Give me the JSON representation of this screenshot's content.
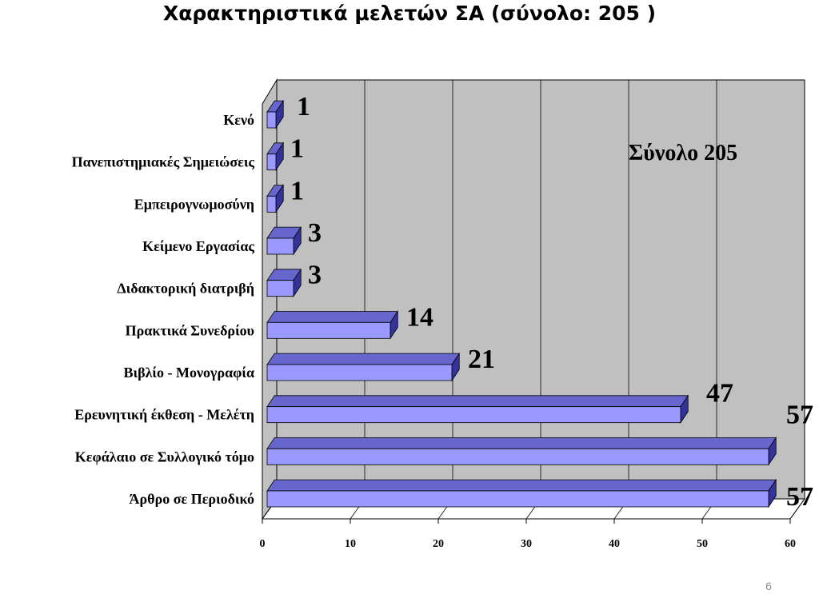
{
  "slide": {
    "title": "Χαρακτηριστικά μελετών ΣΑ (σύνολο: 205 )",
    "page_number": "6"
  },
  "colors": {
    "bar_front": "#9999ff",
    "bar_top": "#6666cc",
    "bar_side": "#333399",
    "back_wall": "#c0c0c0",
    "floor": "#ffffff",
    "gridline": "#000000"
  },
  "chart_data": {
    "type": "bar",
    "orientation": "horizontal",
    "three_d": true,
    "categories": [
      "Άρθρο σε Περιοδικό",
      "Κεφάλαιο σε Συλλογικό τόμο",
      "Ερευνητική έκθεση - Μελέτη",
      "Βιβλίο - Μονογραφία",
      "Πρακτικά Συνεδρίου",
      "Διδακτορική διατριβή",
      "Κείμενο Εργασίας",
      "Εμπειρογνωμοσύνη",
      "Πανεπιστημιακές Σημειώσεις",
      "Κενό"
    ],
    "values": [
      57,
      57,
      47,
      21,
      14,
      3,
      3,
      1,
      1,
      1
    ],
    "data_labels": [
      "57",
      "57",
      "47",
      "21",
      "14",
      "3",
      "3",
      "1",
      "1",
      "1"
    ],
    "xlim": [
      0,
      60
    ],
    "xticks": [
      "0",
      "10",
      "20",
      "30",
      "40",
      "50",
      "60"
    ],
    "grid": true,
    "annotation": "Σύνολο  205",
    "title": "",
    "xlabel": "",
    "ylabel": ""
  }
}
